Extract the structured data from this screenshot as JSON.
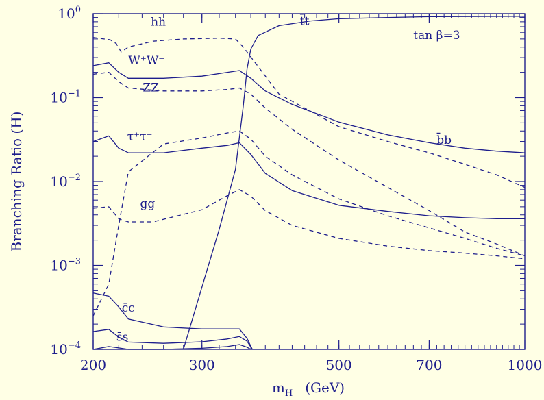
{
  "colors": {
    "background": "#FFFFE5",
    "ink": "#1e1e8c"
  },
  "chart_data": {
    "type": "line",
    "title": "",
    "xlabel": "m_H",
    "xlabel_main": "m",
    "xlabel_sub": "H",
    "xlabel_unit": "(GeV)",
    "ylabel": "Branching Ratio (H)",
    "xscale": "log",
    "yscale": "log",
    "xlim": [
      200,
      1000
    ],
    "ylim": [
      0.0001,
      1
    ],
    "grid": false,
    "x_ticks": [
      {
        "value": 200,
        "label": "200"
      },
      {
        "value": 300,
        "label": "300"
      },
      {
        "value": 500,
        "label": "500"
      },
      {
        "value": 700,
        "label": "700"
      },
      {
        "value": 1000,
        "label": "1000"
      }
    ],
    "y_ticks": [
      {
        "value": 1,
        "base": "10",
        "exp": "0"
      },
      {
        "value": 0.1,
        "base": "10",
        "exp": "−1"
      },
      {
        "value": 0.01,
        "base": "10",
        "exp": "−2"
      },
      {
        "value": 0.001,
        "base": "10",
        "exp": "−3"
      },
      {
        "value": 0.0001,
        "base": "10",
        "exp": "−4"
      }
    ],
    "annotation": {
      "text": "tan β=3",
      "x": 720,
      "y": 0.5
    },
    "series": [
      {
        "name": "hh",
        "style": "dashed",
        "label_pos": [
          255,
          0.72
        ],
        "x": [
          200,
          213,
          218,
          222,
          228,
          250,
          280,
          320,
          340,
          350,
          400,
          500,
          600,
          700,
          800,
          900,
          1000
        ],
        "y": [
          0.52,
          0.49,
          0.44,
          0.35,
          0.4,
          0.47,
          0.5,
          0.51,
          0.5,
          0.4,
          0.11,
          0.045,
          0.03,
          0.022,
          0.016,
          0.012,
          0.0085
        ]
      },
      {
        "name": "W⁺W⁻",
        "style": "solid",
        "label_pos": [
          244,
          0.25
        ],
        "x": [
          200,
          212,
          220,
          228,
          260,
          300,
          330,
          345,
          360,
          380,
          420,
          500,
          600,
          700,
          800,
          900,
          1000
        ],
        "y": [
          0.24,
          0.26,
          0.2,
          0.17,
          0.17,
          0.18,
          0.2,
          0.21,
          0.17,
          0.12,
          0.083,
          0.051,
          0.036,
          0.029,
          0.025,
          0.023,
          0.022
        ]
      },
      {
        "name": "ZZ",
        "style": "dashed",
        "label_pos": [
          248,
          0.118
        ],
        "x": [
          200,
          212,
          220,
          228,
          260,
          300,
          330,
          345,
          360,
          380,
          420,
          500,
          600,
          700,
          800,
          900,
          1000
        ],
        "y": [
          0.19,
          0.2,
          0.155,
          0.13,
          0.12,
          0.12,
          0.125,
          0.13,
          0.11,
          0.075,
          0.042,
          0.018,
          0.0085,
          0.0045,
          0.0025,
          0.0018,
          0.0013
        ]
      },
      {
        "name": "τ⁺τ⁻",
        "style": "solid",
        "label_pos": [
          238,
          0.031
        ],
        "x": [
          200,
          212,
          220,
          228,
          260,
          300,
          330,
          345,
          360,
          380,
          420,
          500,
          600,
          700,
          800,
          900,
          1000
        ],
        "y": [
          0.03,
          0.035,
          0.025,
          0.022,
          0.022,
          0.025,
          0.027,
          0.029,
          0.021,
          0.0125,
          0.0078,
          0.0052,
          0.0044,
          0.0039,
          0.0037,
          0.0036,
          0.0036
        ]
      },
      {
        "name": "gg",
        "style": "dashed",
        "label_pos": [
          245,
          0.0049
        ],
        "x": [
          200,
          212,
          220,
          228,
          250,
          300,
          330,
          345,
          360,
          380,
          420,
          500,
          600,
          700,
          800,
          900,
          1000
        ],
        "y": [
          0.0048,
          0.005,
          0.0036,
          0.0033,
          0.0033,
          0.0046,
          0.0068,
          0.008,
          0.0067,
          0.0045,
          0.003,
          0.0021,
          0.0017,
          0.0015,
          0.0014,
          0.0013,
          0.0012
        ]
      },
      {
        "name": "b̄b",
        "style": "dashed",
        "label_pos": [
          740,
          0.028
        ],
        "x": [
          200,
          212,
          220,
          228,
          260,
          300,
          330,
          345,
          360,
          380,
          420,
          500,
          600,
          700,
          800,
          900,
          1000
        ],
        "y": [
          0.00025,
          0.0006,
          0.003,
          0.013,
          0.028,
          0.033,
          0.038,
          0.04,
          0.032,
          0.02,
          0.012,
          0.0062,
          0.0039,
          0.0028,
          0.0021,
          0.0016,
          0.0013
        ]
      },
      {
        "name": "t̄t",
        "style": "solid",
        "label_pos": [
          440,
          0.73
        ],
        "x": [
          280,
          300,
          320,
          340,
          350,
          355,
          360,
          370,
          400,
          450,
          500,
          600,
          700,
          1000
        ],
        "y": [
          0.0001,
          0.00055,
          0.0027,
          0.014,
          0.08,
          0.22,
          0.38,
          0.55,
          0.72,
          0.82,
          0.87,
          0.9,
          0.92,
          0.93
        ]
      },
      {
        "name": "c̄c",
        "style": "solid",
        "label_pos": [
          228,
          0.00028
        ],
        "x": [
          200,
          212,
          220,
          228,
          260,
          300,
          330,
          345,
          355,
          362
        ],
        "y": [
          0.00047,
          0.00043,
          0.00032,
          0.00023,
          0.000185,
          0.000175,
          0.000175,
          0.000175,
          0.000135,
          0.0001
        ]
      },
      {
        "name": "s̄s",
        "style": "solid",
        "label_pos": [
          223,
          0.000127
        ],
        "x": [
          200,
          212,
          220,
          228,
          260,
          300,
          330,
          345,
          355,
          362
        ],
        "y": [
          0.000163,
          0.000173,
          0.00014,
          0.000122,
          0.000118,
          0.000123,
          0.000133,
          0.000142,
          0.000125,
          0.0001
        ]
      },
      {
        "name": "",
        "style": "solid",
        "label_pos": null,
        "x": [
          200,
          212,
          220,
          228,
          260,
          300,
          330,
          345,
          355,
          360
        ],
        "y": [
          0.0001,
          0.000108,
          0.000104,
          0.0001,
          0.0001,
          0.000103,
          0.000108,
          0.000114,
          0.000106,
          0.0001
        ]
      }
    ]
  }
}
